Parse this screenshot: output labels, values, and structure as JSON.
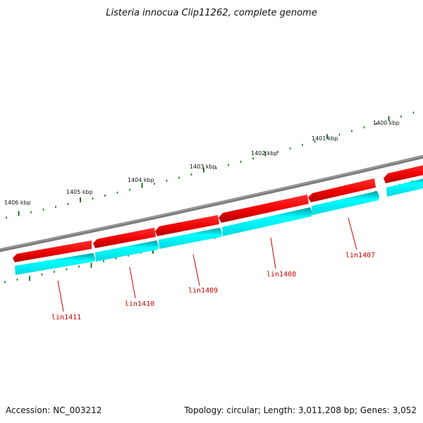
{
  "title": "Listeria innocua Clip11262, complete genome",
  "footer": {
    "accession": "Accession: NC_003212",
    "summary": "Topology: circular; Length: 3,011,208 bp; Genes: 3,052"
  },
  "colors": {
    "backbone": "#808080",
    "forward_gene": "#ee0000",
    "reverse_gene": "#00e5ee",
    "ticks": "#1a7a1a",
    "gene_label": "#cc0000"
  },
  "scale_labels": [
    "1406 kbp",
    "1405 kbp",
    "1404 kbp",
    "1403 kbp",
    "1402 kbp",
    "1401 kbp",
    "1400 kbp"
  ],
  "genes": [
    "lin1411",
    "lin1410",
    "lin1409",
    "lin1408",
    "lin1407"
  ]
}
